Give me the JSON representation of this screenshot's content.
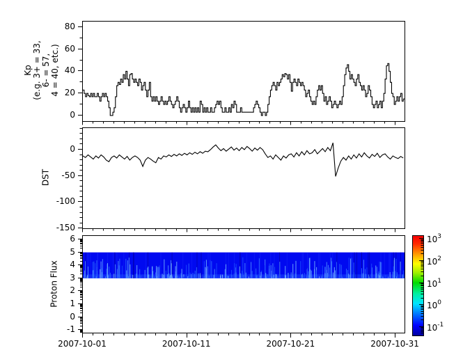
{
  "figure": {
    "background": "#ffffff",
    "frame_color": "#000000"
  },
  "axes_shared_x": {
    "start_date": "2007-10-01",
    "tick_labels": [
      "2007-10-01",
      "2007-10-11",
      "2007-10-21",
      "2007-10-31"
    ],
    "tick_days": [
      0,
      10,
      20,
      30
    ],
    "minor_every_days": 1,
    "range_days": [
      0,
      30.93
    ]
  },
  "colorbar": {
    "scale": "log",
    "lim_exp": [
      -1.38,
      3.13
    ],
    "ticks_exp": [
      3,
      2,
      1,
      0,
      -1
    ],
    "labels": [
      {
        "base": "10",
        "exp": "3"
      },
      {
        "base": "10",
        "exp": "2"
      },
      {
        "base": "10",
        "exp": "1"
      },
      {
        "base": "10",
        "exp": "0"
      },
      {
        "base": "10",
        "exp": "-1"
      }
    ],
    "colormap": "jet",
    "gradient_stops": [
      [
        "#0000a0",
        0
      ],
      [
        "#0000ff",
        0.1
      ],
      [
        "#007bff",
        0.22
      ],
      [
        "#00e5ff",
        0.32
      ],
      [
        "#00f0a0",
        0.42
      ],
      [
        "#00dc00",
        0.53
      ],
      [
        "#a0f000",
        0.63
      ],
      [
        "#ffff00",
        0.72
      ],
      [
        "#ff9800",
        0.82
      ],
      [
        "#ff2a00",
        0.92
      ],
      [
        "#f70000",
        1
      ]
    ]
  },
  "chart_data": [
    {
      "type": "line",
      "style": "step",
      "ylabel_lines": [
        "Kp",
        "(e.g. 3+ = 33,",
        "6- = 57,",
        "4 = 40, etc.)"
      ],
      "ylim": [
        -5.7,
        85.0
      ],
      "yticks": [
        0,
        20,
        40,
        60,
        80
      ],
      "y_minor_step": 10,
      "cadence_hours": 3,
      "line_color": "#000000",
      "values": [
        23,
        20,
        17,
        20,
        18,
        17,
        20,
        17,
        20,
        17,
        17,
        20,
        17,
        13,
        17,
        20,
        17,
        20,
        17,
        13,
        7,
        0,
        0,
        3,
        7,
        17,
        27,
        30,
        28,
        33,
        30,
        37,
        33,
        40,
        33,
        27,
        37,
        38,
        33,
        30,
        33,
        30,
        27,
        33,
        30,
        23,
        27,
        30,
        23,
        17,
        23,
        30,
        17,
        13,
        17,
        13,
        17,
        13,
        10,
        13,
        17,
        13,
        10,
        13,
        10,
        13,
        17,
        13,
        10,
        7,
        10,
        13,
        17,
        13,
        7,
        3,
        7,
        10,
        7,
        3,
        7,
        13,
        7,
        3,
        7,
        3,
        7,
        3,
        7,
        3,
        13,
        10,
        3,
        7,
        3,
        7,
        3,
        3,
        7,
        3,
        3,
        7,
        10,
        13,
        10,
        13,
        7,
        3,
        3,
        7,
        3,
        3,
        7,
        3,
        10,
        7,
        13,
        10,
        3,
        3,
        3,
        7,
        3,
        3,
        3,
        3,
        3,
        3,
        3,
        3,
        3,
        7,
        10,
        13,
        10,
        7,
        3,
        0,
        3,
        3,
        0,
        3,
        10,
        17,
        23,
        27,
        30,
        27,
        23,
        30,
        27,
        30,
        33,
        37,
        35,
        38,
        37,
        33,
        37,
        30,
        22,
        30,
        33,
        30,
        27,
        33,
        30,
        27,
        30,
        27,
        23,
        17,
        20,
        23,
        17,
        13,
        10,
        13,
        10,
        17,
        23,
        27,
        23,
        27,
        20,
        13,
        17,
        10,
        13,
        17,
        13,
        7,
        10,
        13,
        10,
        7,
        10,
        13,
        10,
        17,
        27,
        37,
        43,
        46,
        40,
        33,
        37,
        33,
        30,
        27,
        33,
        37,
        30,
        27,
        23,
        27,
        23,
        17,
        20,
        27,
        23,
        17,
        10,
        7,
        10,
        13,
        7,
        10,
        13,
        7,
        13,
        20,
        33,
        45,
        47,
        40,
        30,
        20,
        17,
        10,
        13,
        17,
        13,
        17,
        20,
        13,
        15
      ]
    },
    {
      "type": "line",
      "style": "linear",
      "ylabel": "DST",
      "ylim": [
        -151,
        41
      ],
      "yticks": [
        0,
        -50,
        -100,
        -150
      ],
      "y_minor_step": 10,
      "cadence_hours": 6,
      "line_color": "#000000",
      "values": [
        -12,
        -15,
        -10,
        -14,
        -18,
        -12,
        -16,
        -10,
        -14,
        -20,
        -23,
        -15,
        -12,
        -16,
        -10,
        -14,
        -18,
        -13,
        -20,
        -15,
        -12,
        -15,
        -20,
        -32,
        -20,
        -15,
        -18,
        -22,
        -25,
        -15,
        -18,
        -12,
        -14,
        -10,
        -13,
        -9,
        -12,
        -8,
        -11,
        -7,
        -10,
        -6,
        -9,
        -5,
        -8,
        -4,
        -7,
        -3,
        -4,
        0,
        5,
        9,
        3,
        -2,
        2,
        -3,
        1,
        5,
        -1,
        3,
        -2,
        4,
        0,
        6,
        2,
        -3,
        3,
        -1,
        4,
        0,
        -8,
        -15,
        -12,
        -18,
        -10,
        -15,
        -20,
        -12,
        -16,
        -10,
        -8,
        -14,
        -6,
        -12,
        -4,
        -10,
        -2,
        -8,
        -6,
        0,
        -8,
        -3,
        2,
        -4,
        4,
        -2,
        13,
        -51,
        -35,
        -22,
        -15,
        -20,
        -12,
        -18,
        -10,
        -16,
        -8,
        -14,
        -6,
        -12,
        -16,
        -9,
        -13,
        -7,
        -15,
        -10,
        -8,
        -14,
        -18,
        -12,
        -15,
        -17,
        -13,
        -16
      ]
    },
    {
      "type": "heatmap",
      "ylabel": "Proton Flux",
      "ylim": [
        -1.26,
        6.27
      ],
      "yticks": [
        -1,
        0,
        1,
        2,
        3,
        4,
        5,
        6
      ],
      "y_scale": "log-decades",
      "band": {
        "y_min": 3,
        "y_max": 5,
        "base_color": "#0009f0",
        "bottom_strip_color": "#1c49ff",
        "light_streak_colors": [
          "#1b4bff",
          "#2e6bff",
          "#4f8dff",
          "#74b2ff"
        ],
        "dark_streak_color": "#0000b0",
        "faint_streak_color": "#2233ff",
        "streak_seed": 20071001,
        "values_approx": "flux mostly ~1e-1 (dark blue) across 10^3–10^5 band, lighter streaks up to ~1e0 near lower edge"
      }
    }
  ]
}
